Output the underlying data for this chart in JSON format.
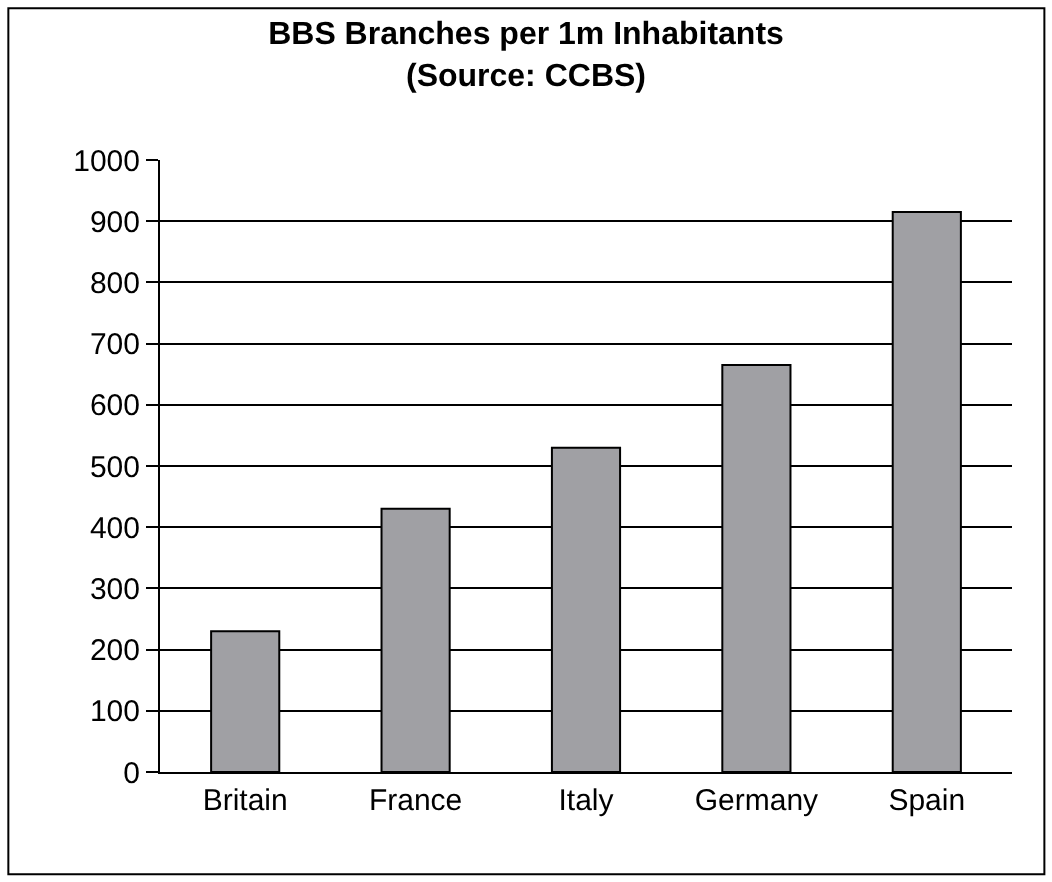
{
  "chart_data": {
    "type": "bar",
    "title": "BBS Branches per 1m Inhabitants",
    "subtitle": "(Source: CCBS)",
    "categories": [
      "Britain",
      "France",
      "Italy",
      "Germany",
      "Spain"
    ],
    "values": [
      230,
      430,
      530,
      665,
      915
    ],
    "color": "#a0a0a4",
    "ylim": [
      0,
      1000
    ],
    "yticks": [
      0,
      100,
      200,
      300,
      400,
      500,
      600,
      700,
      800,
      900,
      1000
    ],
    "grid": "y"
  }
}
